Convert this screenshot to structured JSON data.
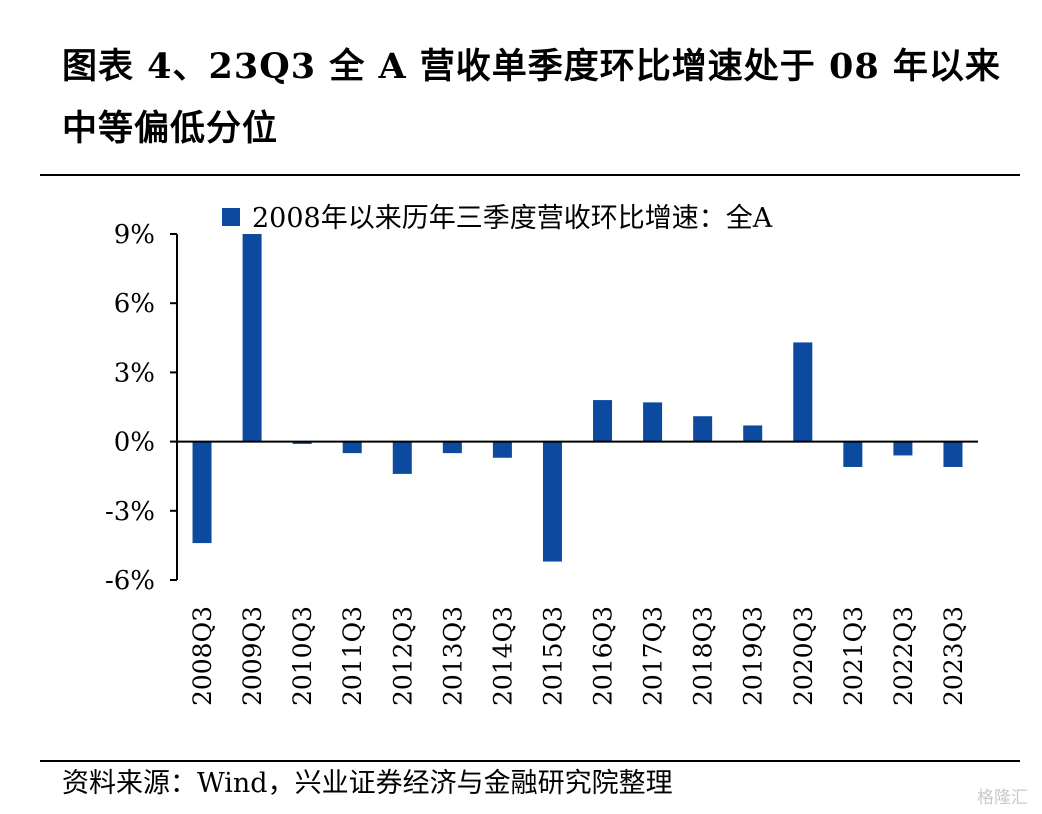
{
  "title": "图表 4、23Q3 全 A 营收单季度环比增速处于 08 年以来中等偏低分位",
  "source": "资料来源：Wind，兴业证券经济与金融研究院整理",
  "watermark": "格隆汇",
  "colors": {
    "bar": "#0B4A9E",
    "axis": "#000000",
    "text": "#000000"
  },
  "chart_data": {
    "type": "bar",
    "categories": [
      "2008Q3",
      "2009Q3",
      "2010Q3",
      "2011Q3",
      "2012Q3",
      "2013Q3",
      "2014Q3",
      "2015Q3",
      "2016Q3",
      "2017Q3",
      "2018Q3",
      "2019Q3",
      "2020Q3",
      "2021Q3",
      "2022Q3",
      "2023Q3"
    ],
    "series": [
      {
        "name": "2008年以来历年三季度营收环比增速：全A",
        "values": [
          -4.4,
          9.0,
          -0.1,
          -0.5,
          -1.4,
          -0.5,
          -0.7,
          -5.2,
          1.8,
          1.7,
          1.1,
          0.7,
          4.3,
          -1.1,
          -0.6,
          -1.1
        ]
      }
    ],
    "ylim": [
      -6,
      9
    ],
    "yticks": [
      -6,
      -3,
      0,
      3,
      6,
      9
    ],
    "ytick_labels": [
      "-6%",
      "-3%",
      "0%",
      "3%",
      "6%",
      "9%"
    ],
    "legend": "top",
    "grid": false
  }
}
